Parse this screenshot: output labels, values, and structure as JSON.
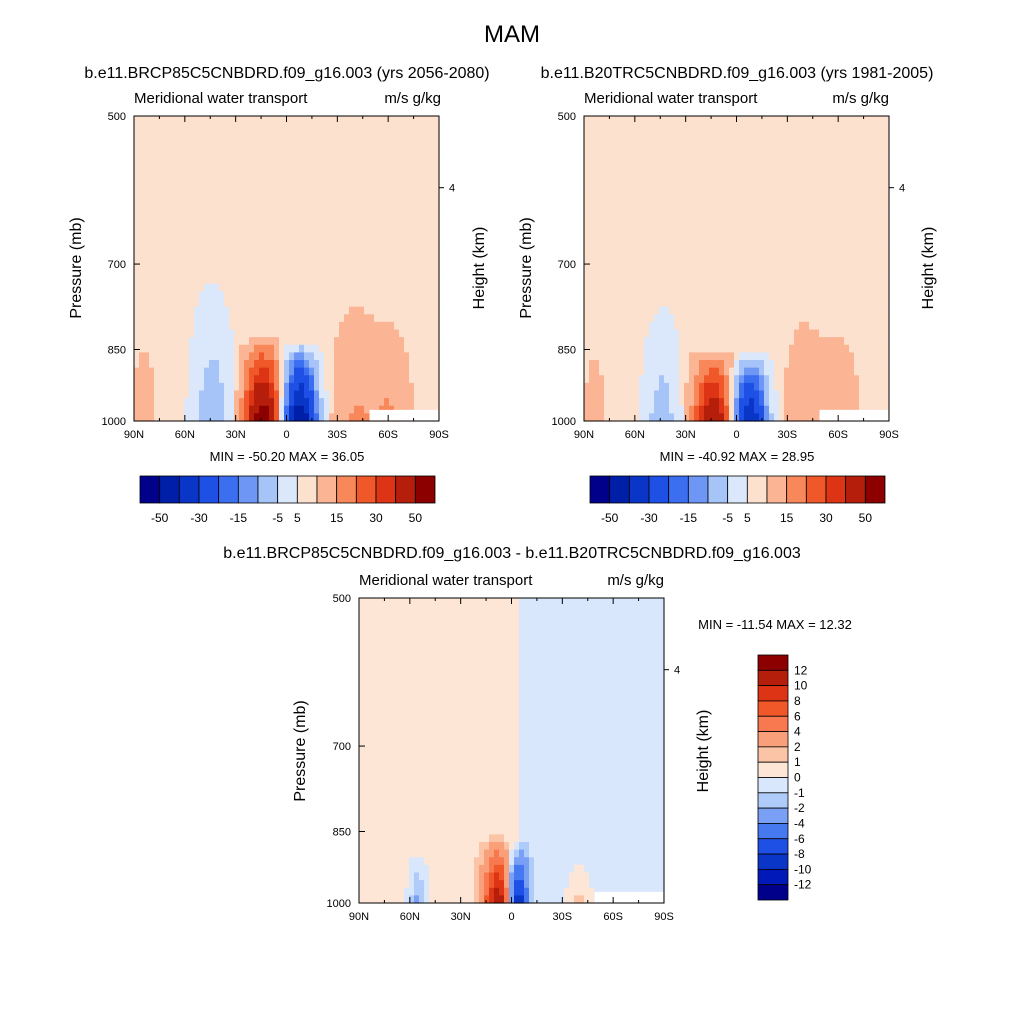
{
  "figure_title": "MAM",
  "colors": {
    "cmap13": [
      "#00008b",
      "#001fa8",
      "#0a36c8",
      "#1e50e6",
      "#3c6ef0",
      "#6e96f5",
      "#a6c4f8",
      "#dbe8fc",
      "#fde1cf",
      "#fbb595",
      "#f8875a",
      "#f0582a",
      "#dc3414",
      "#b41e0a",
      "#8c0000"
    ],
    "cmap_diff": [
      "#00008b",
      "#0019b8",
      "#0a36c8",
      "#1e50e6",
      "#4678f0",
      "#7aa0f5",
      "#aecbf9",
      "#d9e7fc",
      "#fde6d6",
      "#fbc4a6",
      "#f9a07a",
      "#f87850",
      "#f0582a",
      "#dc3414",
      "#b41e0a",
      "#8c0000"
    ],
    "missing": "#ffffff"
  },
  "panels": [
    {
      "id": "future",
      "title": "b.e11.BRCP85C5CNBDRD.f09_g16.003 (yrs 2056-2080)",
      "left_label": "Meridional water transport",
      "right_label": "m/s g/kg",
      "ylabel": "Pressure (mb)",
      "ylabel_right": "Height (km)",
      "stats": "MIN = -50.20  MAX =  36.05",
      "colorbar_labels": [
        "-50",
        "-30",
        "-15",
        "-5",
        "5",
        "15",
        "30",
        "50"
      ],
      "lobes": [
        {
          "lat": -8,
          "p_top": 840,
          "width": 9,
          "peak": -50.2
        },
        {
          "lat": 14,
          "p_top": 830,
          "width": 10,
          "peak": 36.05
        },
        {
          "lat": 44,
          "p_top": 700,
          "width": 12,
          "peak": -9
        },
        {
          "lat": -40,
          "p_top": 720,
          "width": 14,
          "peak": 6
        },
        {
          "lat": -62,
          "p_top": 760,
          "width": 12,
          "peak": 6
        },
        {
          "lat": 84,
          "p_top": 840,
          "width": 4,
          "peak": 4
        }
      ],
      "background_sign_split_lat": 5
    },
    {
      "id": "present",
      "title": "b.e11.B20TRC5CNBDRD.f09_g16.003 (yrs 1981-2005)",
      "left_label": "Meridional water transport",
      "right_label": "m/s g/kg",
      "ylabel": "Pressure (mb)",
      "ylabel_right": "Height (km)",
      "stats": "MIN = -40.92  MAX =  28.95",
      "colorbar_labels": [
        "-50",
        "-30",
        "-15",
        "-5",
        "5",
        "15",
        "30",
        "50"
      ],
      "lobes": [
        {
          "lat": -8,
          "p_top": 860,
          "width": 9,
          "peak": -40.92
        },
        {
          "lat": 14,
          "p_top": 850,
          "width": 10,
          "peak": 28.95
        },
        {
          "lat": 44,
          "p_top": 740,
          "width": 11,
          "peak": -8
        },
        {
          "lat": -40,
          "p_top": 740,
          "width": 13,
          "peak": 5
        },
        {
          "lat": -62,
          "p_top": 780,
          "width": 11,
          "peak": 5
        },
        {
          "lat": 84,
          "p_top": 860,
          "width": 4,
          "peak": 3
        }
      ],
      "background_sign_split_lat": 2
    },
    {
      "id": "diff",
      "title": "b.e11.BRCP85C5CNBDRD.f09_g16.003 - b.e11.B20TRC5CNBDRD.f09_g16.003",
      "left_label": "Meridional water transport",
      "right_label": "m/s g/kg",
      "ylabel": "Pressure (mb)",
      "ylabel_right": "Height (km)",
      "stats": "MIN = -11.54  MAX =  12.32",
      "colorbar_labels": [
        "12",
        "10",
        "8",
        "6",
        "4",
        "2",
        "1",
        "0",
        "-1",
        "-2",
        "-4",
        "-6",
        "-8",
        "-10",
        "-12"
      ],
      "lobes": [
        {
          "lat": -3,
          "p_top": 870,
          "width": 6,
          "peak": -11.54
        },
        {
          "lat": 8,
          "p_top": 860,
          "width": 8,
          "peak": 12.32
        },
        {
          "lat": 55,
          "p_top": 880,
          "width": 6,
          "peak": -3
        },
        {
          "lat": -40,
          "p_top": 900,
          "width": 8,
          "peak": 2
        }
      ],
      "background_sign_split_lat": -5
    }
  ],
  "chart_data": [
    {
      "type": "heatmap",
      "title": "b.e11.BRCP85C5CNBDRD.f09_g16.003 (yrs 2056-2080)",
      "xlabel": "",
      "ylabel": "Pressure (mb)",
      "x_ticks": [
        "90N",
        "60N",
        "30N",
        "0",
        "30S",
        "60S",
        "90S"
      ],
      "y_ticks": [
        "500",
        "700",
        "850",
        "1000"
      ],
      "y_right_label": "Height (km)",
      "y_right_ticks": [
        "4"
      ],
      "ylim": [
        1000,
        500
      ],
      "y_scale": "log",
      "contour_levels": [
        -50,
        -40,
        -30,
        -20,
        -15,
        -10,
        -5,
        -1,
        1,
        5,
        10,
        15,
        20,
        30,
        40,
        50
      ],
      "min": -50.2,
      "max": 36.05
    },
    {
      "type": "heatmap",
      "title": "b.e11.B20TRC5CNBDRD.f09_g16.003 (yrs 1981-2005)",
      "xlabel": "",
      "ylabel": "Pressure (mb)",
      "x_ticks": [
        "90N",
        "60N",
        "30N",
        "0",
        "30S",
        "60S",
        "90S"
      ],
      "y_ticks": [
        "500",
        "700",
        "850",
        "1000"
      ],
      "y_right_label": "Height (km)",
      "y_right_ticks": [
        "4"
      ],
      "ylim": [
        1000,
        500
      ],
      "y_scale": "log",
      "contour_levels": [
        -50,
        -40,
        -30,
        -20,
        -15,
        -10,
        -5,
        -1,
        1,
        5,
        10,
        15,
        20,
        30,
        40,
        50
      ],
      "min": -40.92,
      "max": 28.95
    },
    {
      "type": "heatmap",
      "title": "b.e11.BRCP85C5CNBDRD.f09_g16.003 - b.e11.B20TRC5CNBDRD.f09_g16.003",
      "xlabel": "",
      "ylabel": "Pressure (mb)",
      "x_ticks": [
        "90N",
        "60N",
        "30N",
        "0",
        "30S",
        "60S",
        "90S"
      ],
      "y_ticks": [
        "500",
        "700",
        "850",
        "1000"
      ],
      "y_right_label": "Height (km)",
      "y_right_ticks": [
        "4"
      ],
      "ylim": [
        1000,
        500
      ],
      "y_scale": "log",
      "contour_levels": [
        -12,
        -10,
        -8,
        -6,
        -4,
        -2,
        -1,
        0,
        1,
        2,
        4,
        6,
        8,
        10,
        12
      ],
      "min": -11.54,
      "max": 12.32
    }
  ]
}
